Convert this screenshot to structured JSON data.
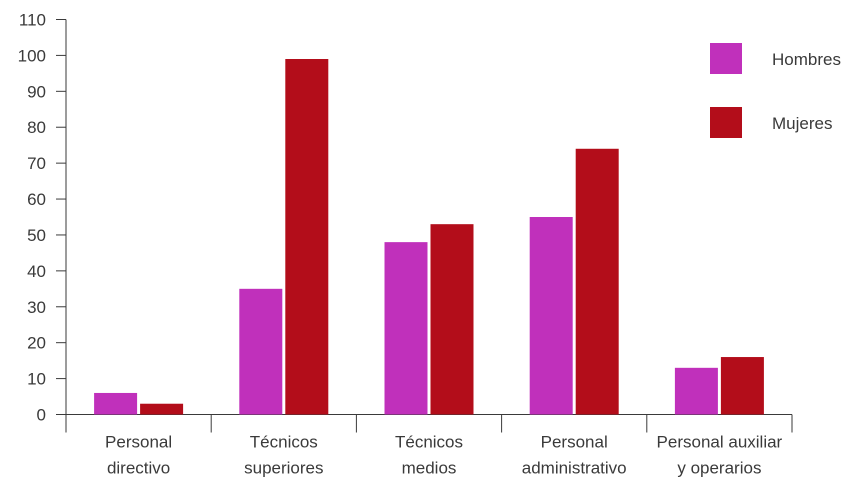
{
  "chart_data": {
    "type": "bar",
    "categories": [
      [
        "Personal",
        "directivo"
      ],
      [
        "Técnicos",
        "superiores"
      ],
      [
        "Técnicos",
        "medios"
      ],
      [
        "Personal",
        "administrativo"
      ],
      [
        "Personal auxiliar",
        "y operarios"
      ]
    ],
    "series": [
      {
        "name": "Hombres",
        "color": "#c030bb",
        "values": [
          6,
          35,
          48,
          55,
          13
        ]
      },
      {
        "name": "Mujeres",
        "color": "#b30d1a",
        "values": [
          3,
          99,
          53,
          74,
          16
        ]
      }
    ],
    "ylim": [
      0,
      110
    ],
    "yticks": [
      0,
      10,
      20,
      30,
      40,
      50,
      60,
      70,
      80,
      90,
      100,
      110
    ],
    "legend": "top-right",
    "grid": false,
    "title": "",
    "xlabel": "",
    "ylabel": ""
  }
}
